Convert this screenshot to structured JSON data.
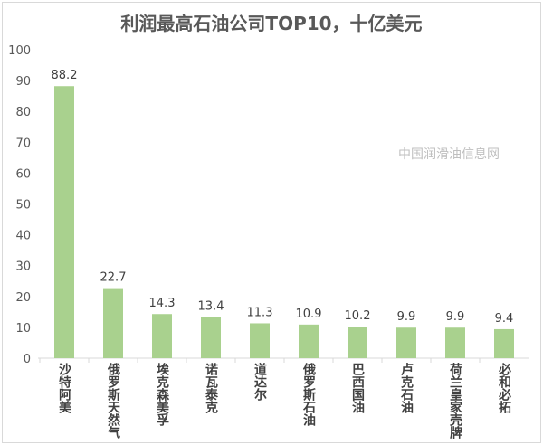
{
  "chart_data": {
    "type": "bar",
    "title": "利润最高石油公司TOP10，十亿美元",
    "categories": [
      "沙特阿美",
      "俄罗斯天然气",
      "埃克森美孚",
      "诺瓦泰克",
      "道达尔",
      "俄罗斯石油",
      "巴西国油",
      "卢克石油",
      "荷兰皇家壳牌",
      "必和必拓"
    ],
    "values": [
      88.2,
      22.7,
      14.3,
      13.4,
      11.3,
      10.9,
      10.2,
      9.9,
      9.9,
      9.4
    ],
    "value_labels": [
      "88.2",
      "22.7",
      "14.3",
      "13.4",
      "11.3",
      "10.9",
      "10.2",
      "9.9",
      "9.9",
      "9.4"
    ],
    "yticks": [
      "0",
      "10",
      "20",
      "30",
      "40",
      "50",
      "60",
      "70",
      "80",
      "90",
      "100"
    ],
    "ylim": [
      0,
      100
    ],
    "xlabel": "",
    "ylabel": "",
    "bar_color": "#a9d18e",
    "grid": false
  },
  "watermark": "中国润滑油信息网"
}
